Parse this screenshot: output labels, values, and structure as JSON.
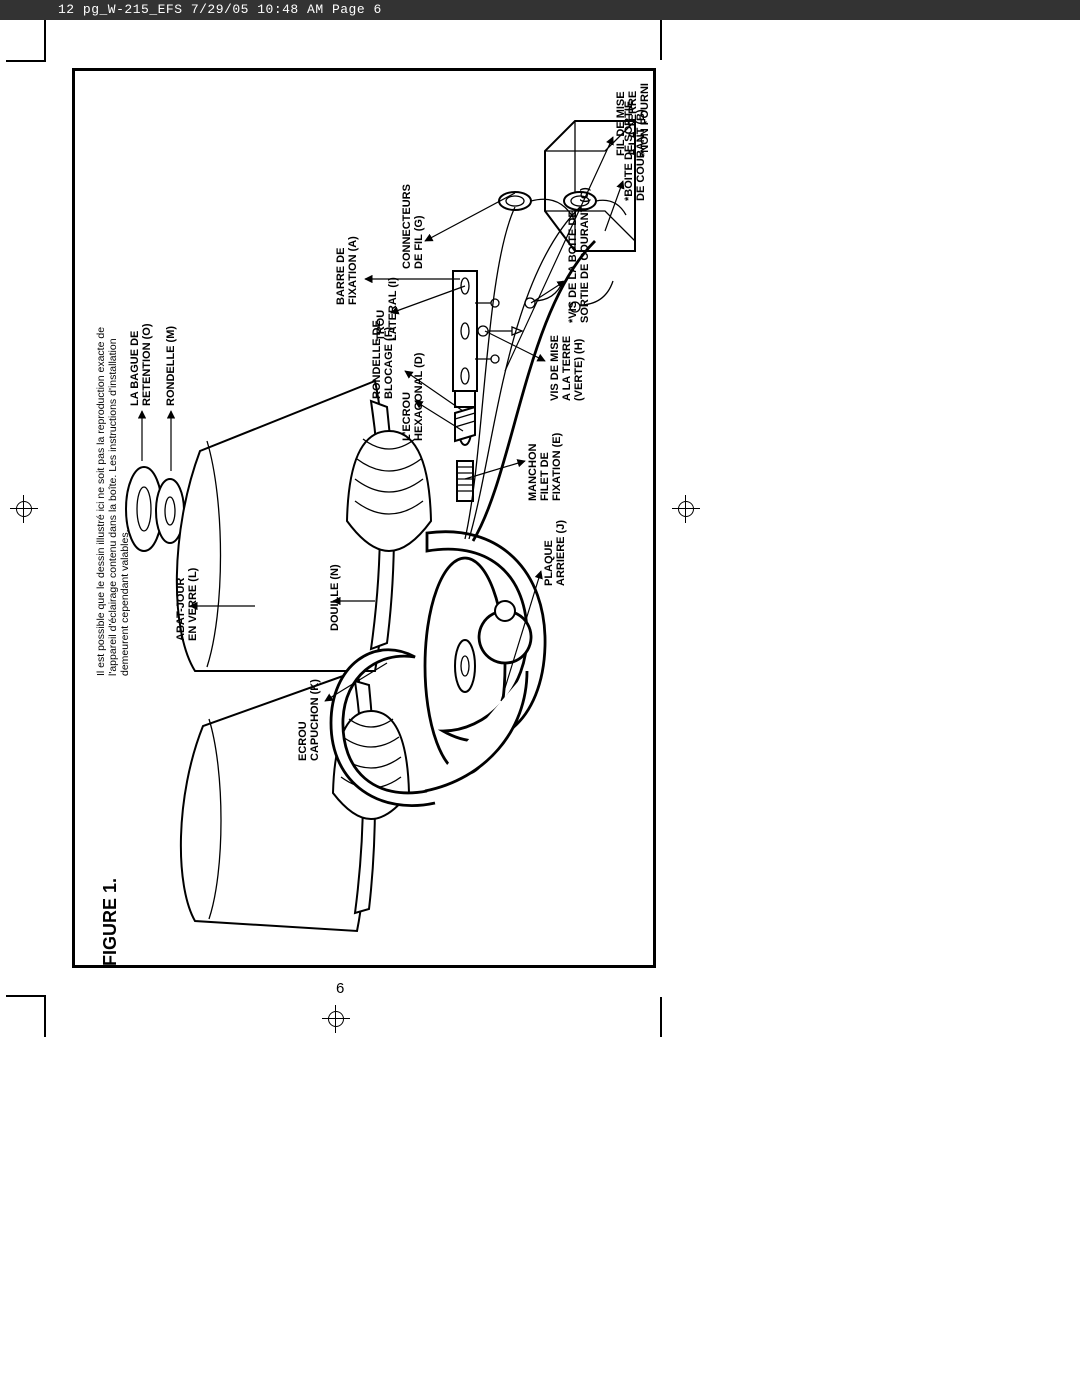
{
  "header": "12 pg_W-215_EFS  7/29/05  10:48 AM  Page 6",
  "page_number": "6",
  "figure_title": "FIGURE 1.",
  "labels": {
    "bague": "LA BAGUE DE\nRETENTION (O)",
    "rondelleM": "RONDELLE (M)",
    "abatjour": "ABAT-JOUR\nEN VERRE (L)",
    "ecrouK": "ECROU\nCAPUCHON (K)",
    "douille": "DOUILLE (N)",
    "barre": "BARRE DE\nFIXATION (A)",
    "trou": "TROU\nLATERAL (I)",
    "connect": "CONNECTEURS\nDE FIL (G)",
    "rondelleF": "RONDELLE DE\nBLOCAGE (F)",
    "hexD": "L'ECROU\nHEXAGONAL (D)",
    "fildemise": "FIL DE MISE\nA LA TERRE",
    "manchon": "MANCHON\nFILET DE\nFIXATION (E)",
    "visH": "VIS DE MISE\nA LA TERRE\n(VERTE) (H)",
    "visC": "*VIS DE LA BOITE DE\nSORTIE DE COURANT (C)",
    "plaque": "PLAQUE\nARRIERE (J)",
    "boite": "*BOITE DE SORTIE\nDE COURANT (B)",
    "nonfourni": "*NON FOURNI"
  },
  "caption": "Il est possible que le dessin illustré ici ne soit pas la reproduction exacte de\nl'appareil d'éclairage contenu dans la boîte. Les instructions d'installation\ndemeurent cependant valables.",
  "colors": {
    "header_bg": "#333333",
    "header_fg": "#ffffff",
    "stroke": "#000000",
    "bg": "#ffffff"
  }
}
